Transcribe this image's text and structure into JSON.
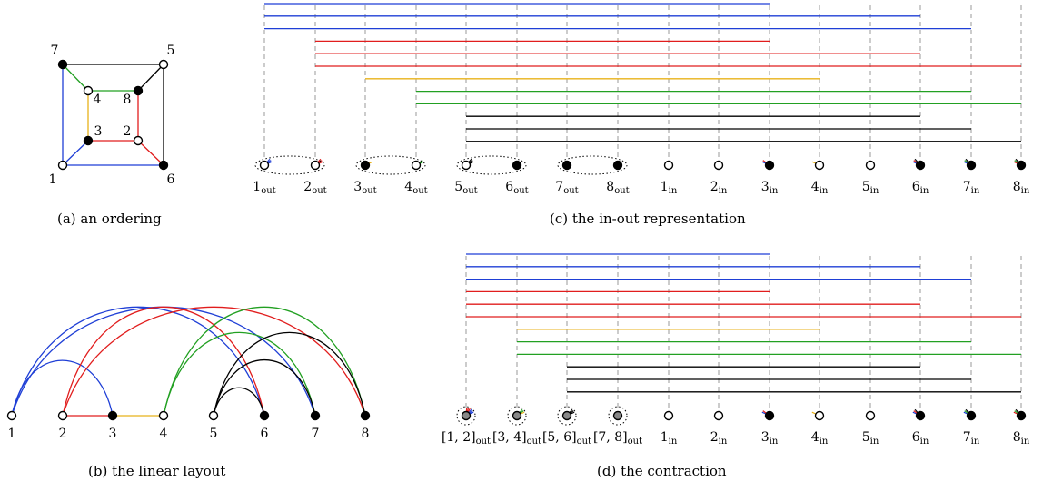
{
  "colors": {
    "blue": "#1f3fd6",
    "red": "#e11d1d",
    "green": "#22a022",
    "orange": "#e8b21a",
    "black": "#000000",
    "gray": "#888888",
    "dash": "#999999"
  },
  "panel_a": {
    "caption": "(a) an ordering",
    "vertices": [
      {
        "label": "1",
        "filled": false
      },
      {
        "label": "2",
        "filled": false
      },
      {
        "label": "3",
        "filled": true
      },
      {
        "label": "4",
        "filled": false
      },
      {
        "label": "5",
        "filled": false
      },
      {
        "label": "6",
        "filled": true
      },
      {
        "label": "7",
        "filled": true
      },
      {
        "label": "8",
        "filled": true
      }
    ],
    "edges": [
      {
        "u": 1,
        "v": 7,
        "color": "blue"
      },
      {
        "u": 1,
        "v": 6,
        "color": "blue"
      },
      {
        "u": 1,
        "v": 3,
        "color": "blue"
      },
      {
        "u": 2,
        "v": 3,
        "color": "red"
      },
      {
        "u": 2,
        "v": 6,
        "color": "red"
      },
      {
        "u": 2,
        "v": 8,
        "color": "red"
      },
      {
        "u": 3,
        "v": 4,
        "color": "orange"
      },
      {
        "u": 4,
        "v": 7,
        "color": "green"
      },
      {
        "u": 4,
        "v": 8,
        "color": "green"
      },
      {
        "u": 5,
        "v": 6,
        "color": "black"
      },
      {
        "u": 5,
        "v": 7,
        "color": "black"
      },
      {
        "u": 5,
        "v": 8,
        "color": "black"
      }
    ]
  },
  "panel_b": {
    "caption": "(b) the linear layout",
    "vertices": [
      {
        "label": "1",
        "filled": false
      },
      {
        "label": "2",
        "filled": false
      },
      {
        "label": "3",
        "filled": true
      },
      {
        "label": "4",
        "filled": false
      },
      {
        "label": "5",
        "filled": false
      },
      {
        "label": "6",
        "filled": true
      },
      {
        "label": "7",
        "filled": true
      },
      {
        "label": "8",
        "filled": true
      }
    ]
  },
  "panel_c": {
    "caption": "(c) the in-out representation",
    "nodes": [
      {
        "main": "1",
        "sub": "out",
        "fill": "white"
      },
      {
        "main": "2",
        "sub": "out",
        "fill": "white"
      },
      {
        "main": "3",
        "sub": "out",
        "fill": "black"
      },
      {
        "main": "4",
        "sub": "out",
        "fill": "white"
      },
      {
        "main": "5",
        "sub": "out",
        "fill": "white"
      },
      {
        "main": "6",
        "sub": "out",
        "fill": "black"
      },
      {
        "main": "7",
        "sub": "out",
        "fill": "black"
      },
      {
        "main": "8",
        "sub": "out",
        "fill": "black"
      },
      {
        "main": "1",
        "sub": "in",
        "fill": "white"
      },
      {
        "main": "2",
        "sub": "in",
        "fill": "white"
      },
      {
        "main": "3",
        "sub": "in",
        "fill": "black"
      },
      {
        "main": "4",
        "sub": "in",
        "fill": "white"
      },
      {
        "main": "5",
        "sub": "in",
        "fill": "white"
      },
      {
        "main": "6",
        "sub": "in",
        "fill": "black"
      },
      {
        "main": "7",
        "sub": "in",
        "fill": "black"
      },
      {
        "main": "8",
        "sub": "in",
        "fill": "black"
      }
    ],
    "lines": [
      {
        "from": 0,
        "to": 10,
        "color": "blue"
      },
      {
        "from": 0,
        "to": 13,
        "color": "blue"
      },
      {
        "from": 0,
        "to": 14,
        "color": "blue"
      },
      {
        "from": 1,
        "to": 10,
        "color": "red"
      },
      {
        "from": 1,
        "to": 13,
        "color": "red"
      },
      {
        "from": 1,
        "to": 15,
        "color": "red"
      },
      {
        "from": 2,
        "to": 11,
        "color": "orange"
      },
      {
        "from": 3,
        "to": 14,
        "color": "green"
      },
      {
        "from": 3,
        "to": 15,
        "color": "green"
      },
      {
        "from": 4,
        "to": 13,
        "color": "black"
      },
      {
        "from": 4,
        "to": 14,
        "color": "black"
      },
      {
        "from": 4,
        "to": 15,
        "color": "black"
      }
    ],
    "pairs": [
      [
        0,
        1
      ],
      [
        2,
        3
      ],
      [
        4,
        5
      ],
      [
        6,
        7
      ]
    ]
  },
  "panel_d": {
    "caption": "(d) the contraction",
    "nodes": [
      {
        "main": "[1, 2]",
        "sub": "out",
        "fill": "gray"
      },
      {
        "main": "[3, 4]",
        "sub": "out",
        "fill": "gray"
      },
      {
        "main": "[5, 6]",
        "sub": "out",
        "fill": "gray"
      },
      {
        "main": "[7, 8]",
        "sub": "out",
        "fill": "gray"
      },
      {
        "main": "1",
        "sub": "in",
        "fill": "white"
      },
      {
        "main": "2",
        "sub": "in",
        "fill": "white"
      },
      {
        "main": "3",
        "sub": "in",
        "fill": "black"
      },
      {
        "main": "4",
        "sub": "in",
        "fill": "white"
      },
      {
        "main": "5",
        "sub": "in",
        "fill": "white"
      },
      {
        "main": "6",
        "sub": "in",
        "fill": "black"
      },
      {
        "main": "7",
        "sub": "in",
        "fill": "black"
      },
      {
        "main": "8",
        "sub": "in",
        "fill": "black"
      }
    ],
    "lines": [
      {
        "from": 0,
        "to": 6,
        "color": "blue"
      },
      {
        "from": 0,
        "to": 9,
        "color": "blue"
      },
      {
        "from": 0,
        "to": 10,
        "color": "blue"
      },
      {
        "from": 0,
        "to": 6,
        "color": "red"
      },
      {
        "from": 0,
        "to": 9,
        "color": "red"
      },
      {
        "from": 0,
        "to": 11,
        "color": "red"
      },
      {
        "from": 1,
        "to": 7,
        "color": "orange"
      },
      {
        "from": 1,
        "to": 10,
        "color": "green"
      },
      {
        "from": 1,
        "to": 11,
        "color": "green"
      },
      {
        "from": 2,
        "to": 9,
        "color": "black"
      },
      {
        "from": 2,
        "to": 10,
        "color": "black"
      },
      {
        "from": 2,
        "to": 11,
        "color": "black"
      }
    ]
  }
}
